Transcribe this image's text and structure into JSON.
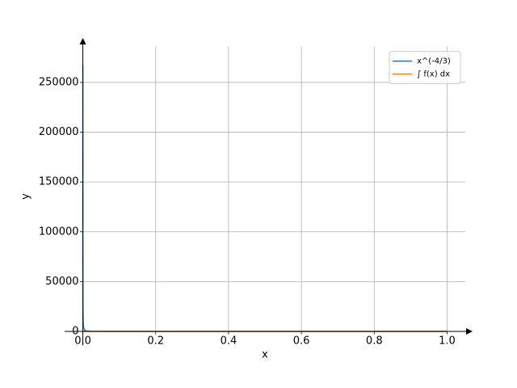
{
  "chart_data": {
    "type": "line",
    "x_label": "x",
    "y_label": "y",
    "x": [
      8.5e-05,
      0.0002,
      0.0005,
      0.001,
      0.002,
      0.005,
      0.01,
      0.02,
      0.05,
      0.1,
      0.2,
      0.4,
      0.6,
      0.8,
      1.0
    ],
    "series": [
      {
        "name": "x^(-4/3)",
        "color": "#1f77b4",
        "values": [
          267500,
          85480,
          25198,
          10000,
          3968.5,
          1169.6,
          464.16,
          184.2,
          54.29,
          21.54,
          8.55,
          3.39,
          1.977,
          1.346,
          1
        ]
      },
      {
        "name": "∫ f(x) dx",
        "color": "#ff7f0e",
        "values": [
          -68.2,
          -51.3,
          -37.8,
          -30,
          -23.8,
          -17.5,
          -13.9,
          -11.1,
          -8.1,
          -6.5,
          -5.1,
          -4.1,
          -3.6,
          -3.2,
          -3
        ]
      }
    ],
    "xlim": [
      -0.05,
      1.05
    ],
    "ylim": [
      -14000,
      286000
    ],
    "xticks": [
      {
        "value": 0,
        "label": "0.0"
      },
      {
        "value": 0.2,
        "label": "0.2"
      },
      {
        "value": 0.4,
        "label": "0.4"
      },
      {
        "value": 0.6,
        "label": "0.6"
      },
      {
        "value": 0.8,
        "label": "0.8"
      },
      {
        "value": 1.0,
        "label": "1.0"
      }
    ],
    "yticks": [
      0,
      50000,
      100000,
      150000,
      200000,
      250000
    ],
    "grid": true,
    "legend": "upper right"
  }
}
